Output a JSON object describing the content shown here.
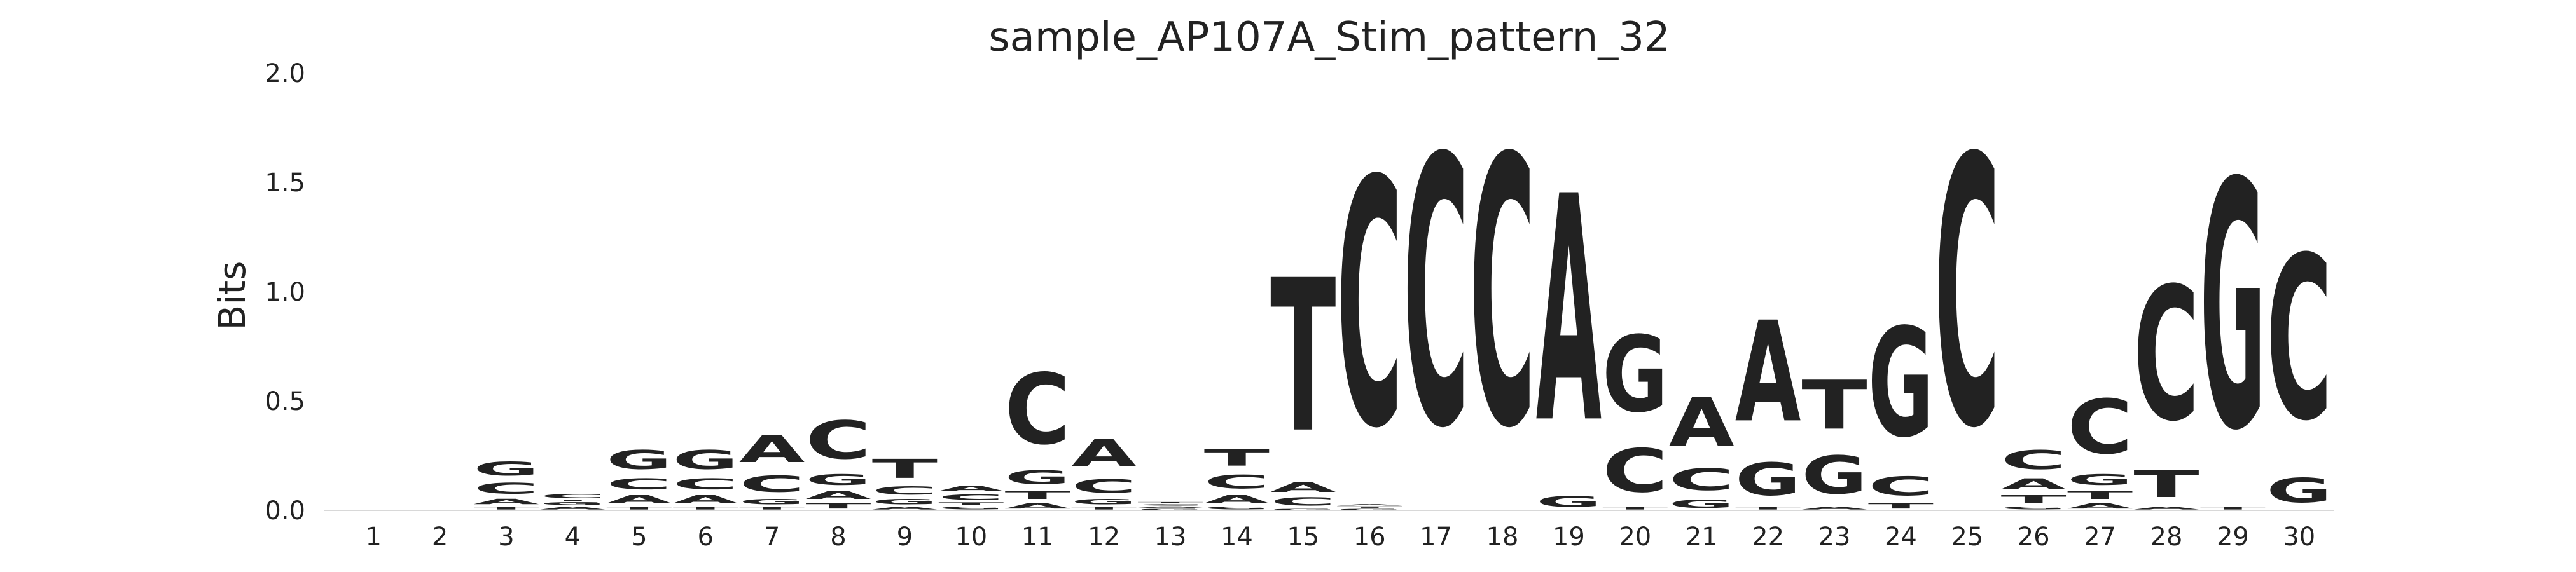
{
  "chart_data": {
    "type": "sequence-logo",
    "title": "sample_AP107A_Stim_pattern_32",
    "ylabel": "Bits",
    "xlabel": "",
    "ylim": [
      0,
      2.0
    ],
    "y_ticks": [
      "0.0",
      "0.5",
      "1.0",
      "1.5",
      "2.0"
    ],
    "x_ticks": [
      "1",
      "2",
      "3",
      "4",
      "5",
      "6",
      "7",
      "8",
      "9",
      "10",
      "11",
      "12",
      "13",
      "14",
      "15",
      "16",
      "17",
      "18",
      "19",
      "20",
      "21",
      "22",
      "23",
      "24",
      "25",
      "26",
      "27",
      "28",
      "29",
      "30"
    ],
    "grid": false,
    "base_colors": {
      "A": "#008000",
      "C": "#0000ff",
      "G": "#ffa500",
      "T": "#ff0000"
    },
    "positions": [
      {
        "pos": 1,
        "letters": []
      },
      {
        "pos": 2,
        "letters": []
      },
      {
        "pos": 3,
        "letters": [
          {
            "base": "T",
            "height": 0.02
          },
          {
            "base": "A",
            "height": 0.04
          },
          {
            "base": "C",
            "height": 0.08
          },
          {
            "base": "G",
            "height": 0.1
          }
        ]
      },
      {
        "pos": 4,
        "letters": [
          {
            "base": "A",
            "height": 0.02
          },
          {
            "base": "G",
            "height": 0.02
          },
          {
            "base": "T",
            "height": 0.01
          },
          {
            "base": "C",
            "height": 0.03
          }
        ]
      },
      {
        "pos": 5,
        "letters": [
          {
            "base": "T",
            "height": 0.02
          },
          {
            "base": "A",
            "height": 0.06
          },
          {
            "base": "C",
            "height": 0.08
          },
          {
            "base": "G",
            "height": 0.14
          }
        ]
      },
      {
        "pos": 6,
        "letters": [
          {
            "base": "T",
            "height": 0.02
          },
          {
            "base": "A",
            "height": 0.06
          },
          {
            "base": "C",
            "height": 0.08
          },
          {
            "base": "G",
            "height": 0.14
          }
        ]
      },
      {
        "pos": 7,
        "letters": [
          {
            "base": "T",
            "height": 0.02
          },
          {
            "base": "G",
            "height": 0.04
          },
          {
            "base": "C",
            "height": 0.12
          },
          {
            "base": "A",
            "height": 0.2
          }
        ]
      },
      {
        "pos": 8,
        "letters": [
          {
            "base": "T",
            "height": 0.04
          },
          {
            "base": "A",
            "height": 0.06
          },
          {
            "base": "G",
            "height": 0.08
          },
          {
            "base": "C",
            "height": 0.28
          }
        ]
      },
      {
        "pos": 9,
        "letters": [
          {
            "base": "A",
            "height": 0.02
          },
          {
            "base": "G",
            "height": 0.04
          },
          {
            "base": "C",
            "height": 0.06
          },
          {
            "base": "T",
            "height": 0.14
          }
        ]
      },
      {
        "pos": 10,
        "letters": [
          {
            "base": "G",
            "height": 0.02
          },
          {
            "base": "T",
            "height": 0.02
          },
          {
            "base": "C",
            "height": 0.04
          },
          {
            "base": "A",
            "height": 0.04
          }
        ]
      },
      {
        "pos": 11,
        "letters": [
          {
            "base": "A",
            "height": 0.04
          },
          {
            "base": "T",
            "height": 0.06
          },
          {
            "base": "G",
            "height": 0.1
          },
          {
            "base": "C",
            "height": 0.52
          }
        ]
      },
      {
        "pos": 12,
        "letters": [
          {
            "base": "T",
            "height": 0.02
          },
          {
            "base": "G",
            "height": 0.04
          },
          {
            "base": "C",
            "height": 0.1
          },
          {
            "base": "A",
            "height": 0.2
          }
        ]
      },
      {
        "pos": 13,
        "letters": [
          {
            "base": "G",
            "height": 0.01
          },
          {
            "base": "A",
            "height": 0.01
          },
          {
            "base": "C",
            "height": 0.01
          },
          {
            "base": "T",
            "height": 0.01
          }
        ]
      },
      {
        "pos": 14,
        "letters": [
          {
            "base": "G",
            "height": 0.02
          },
          {
            "base": "A",
            "height": 0.06
          },
          {
            "base": "C",
            "height": 0.1
          },
          {
            "base": "T",
            "height": 0.12
          }
        ]
      },
      {
        "pos": 15,
        "letters": [
          {
            "base": "G",
            "height": 0.01
          },
          {
            "base": "C",
            "height": 0.06
          },
          {
            "base": "A",
            "height": 0.07
          },
          {
            "base": "T",
            "height": 1.12
          }
        ]
      },
      {
        "pos": 16,
        "letters": [
          {
            "base": "G",
            "height": 0.01
          },
          {
            "base": "T",
            "height": 0.01
          },
          {
            "base": "A",
            "height": 0.01
          },
          {
            "base": "C",
            "height": 1.81
          }
        ]
      },
      {
        "pos": 17,
        "letters": [
          {
            "base": "C",
            "height": 1.97
          }
        ]
      },
      {
        "pos": 18,
        "letters": [
          {
            "base": "C",
            "height": 1.97
          }
        ]
      },
      {
        "pos": 19,
        "letters": [
          {
            "base": "G",
            "height": 0.08
          },
          {
            "base": "A",
            "height": 1.66
          }
        ]
      },
      {
        "pos": 20,
        "letters": [
          {
            "base": "T",
            "height": 0.02
          },
          {
            "base": "C",
            "height": 0.32
          },
          {
            "base": "G",
            "height": 0.56
          }
        ]
      },
      {
        "pos": 21,
        "letters": [
          {
            "base": "G",
            "height": 0.06
          },
          {
            "base": "C",
            "height": 0.16
          },
          {
            "base": "A",
            "height": 0.36
          }
        ]
      },
      {
        "pos": 22,
        "letters": [
          {
            "base": "T",
            "height": 0.02
          },
          {
            "base": "G",
            "height": 0.24
          },
          {
            "base": "A",
            "height": 0.74
          }
        ]
      },
      {
        "pos": 23,
        "letters": [
          {
            "base": "A",
            "height": 0.02
          },
          {
            "base": "G",
            "height": 0.28
          },
          {
            "base": "T",
            "height": 0.36
          }
        ]
      },
      {
        "pos": 24,
        "letters": [
          {
            "base": "T",
            "height": 0.04
          },
          {
            "base": "C",
            "height": 0.14
          },
          {
            "base": "G",
            "height": 0.8
          }
        ]
      },
      {
        "pos": 25,
        "letters": [
          {
            "base": "C",
            "height": 1.97
          }
        ]
      },
      {
        "pos": 26,
        "letters": [
          {
            "base": "G",
            "height": 0.02
          },
          {
            "base": "T",
            "height": 0.06
          },
          {
            "base": "A",
            "height": 0.08
          },
          {
            "base": "C",
            "height": 0.14
          }
        ]
      },
      {
        "pos": 27,
        "letters": [
          {
            "base": "A",
            "height": 0.04
          },
          {
            "base": "T",
            "height": 0.06
          },
          {
            "base": "G",
            "height": 0.08
          },
          {
            "base": "C",
            "height": 0.4
          }
        ]
      },
      {
        "pos": 28,
        "letters": [
          {
            "base": "A",
            "height": 0.02
          },
          {
            "base": "T",
            "height": 0.2
          },
          {
            "base": "C",
            "height": 0.98
          }
        ]
      },
      {
        "pos": 29,
        "letters": [
          {
            "base": "T",
            "height": 0.02
          },
          {
            "base": "G",
            "height": 1.81
          }
        ]
      },
      {
        "pos": 30,
        "letters": [
          {
            "base": "G",
            "height": 0.18
          },
          {
            "base": "C",
            "height": 1.2
          }
        ]
      }
    ]
  }
}
